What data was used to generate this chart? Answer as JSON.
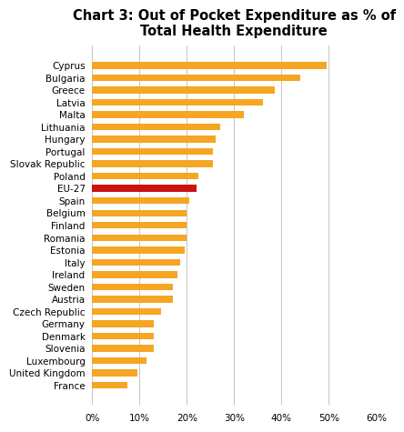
{
  "title": "Chart 3: Out of Pocket Expenditure as % of\nTotal Health Expenditure",
  "categories": [
    "Cyprus",
    "Bulgaria",
    "Greece",
    "Latvia",
    "Malta",
    "Lithuania",
    "Hungary",
    "Portugal",
    "Slovak Republic",
    "Poland",
    "EU-27",
    "Spain",
    "Belgium",
    "Finland",
    "Romania",
    "Estonia",
    "Italy",
    "Ireland",
    "Sweden",
    "Austria",
    "Czech Republic",
    "Germany",
    "Denmark",
    "Slovenia",
    "Luxembourg",
    "United Kingdom",
    "France"
  ],
  "values": [
    49.5,
    44.0,
    38.5,
    36.0,
    32.0,
    27.0,
    26.0,
    25.5,
    25.5,
    22.5,
    22.0,
    20.5,
    20.0,
    20.0,
    20.0,
    19.5,
    18.5,
    18.0,
    17.0,
    17.0,
    14.5,
    13.0,
    13.0,
    13.0,
    11.5,
    9.5,
    7.5
  ],
  "bar_colors_flag": [
    false,
    false,
    false,
    false,
    false,
    false,
    false,
    false,
    false,
    false,
    true,
    false,
    false,
    false,
    false,
    false,
    false,
    false,
    false,
    false,
    false,
    false,
    false,
    false,
    false,
    false,
    false
  ],
  "orange_color": "#F5A623",
  "red_color": "#CC1111",
  "xlim": [
    0,
    60
  ],
  "xtick_vals": [
    0,
    10,
    20,
    30,
    40,
    50,
    60
  ],
  "background_color": "#ffffff",
  "title_fontsize": 10.5,
  "tick_fontsize": 7.5,
  "bar_height": 0.55
}
